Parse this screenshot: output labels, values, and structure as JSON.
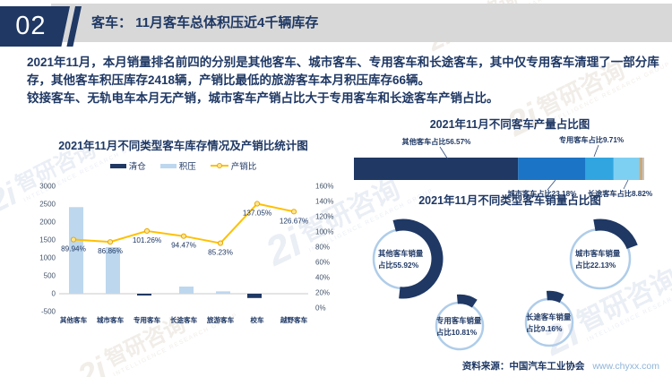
{
  "header": {
    "number": "02",
    "title": "客车： 11月客车总体积压近4千辆库存"
  },
  "intro": {
    "paragraph1": "2021年11月，本月销量排名前四的分别是其他客车、城市客车、专用客车和长途客车，其中仅专用客车清理了一部分库存，其他客车积压库存2418辆，产销比最低的旅游客车本月积压库存66辆。",
    "paragraph2": "铰接客车、无轨电车本月无产销，城市客车产销占比大于专用客车和长途客车产销占比。"
  },
  "footer": {
    "source_label": "资料来源：中国汽车工业协会",
    "url": "www.chyxx.com"
  },
  "watermark": {
    "glyph": "2i",
    "logo_text": "智研咨询",
    "sub_text": "INTELLIGENCE RESEARCH GROUP"
  },
  "colors": {
    "navy": "#1F3864",
    "light_blue": "#BDD7EE",
    "gold": "#FFC000",
    "header_gray": "#D8D8D8",
    "ring_blue": "#AFCDE9"
  },
  "chart_data": [
    {
      "id": "inventory_and_ratio",
      "type": "bar+line",
      "title": "2021年11月不同类型客车库存情况及产销比统计图",
      "categories": [
        "其他客车",
        "城市客车",
        "专用客车",
        "长途客车",
        "旅游客车",
        "校车",
        "越野客车"
      ],
      "series": [
        {
          "name": "清仓",
          "type": "bar",
          "axis": "left",
          "color": "#1F3864",
          "values": [
            0,
            0,
            -50,
            0,
            0,
            -120,
            0
          ]
        },
        {
          "name": "积压",
          "type": "bar",
          "axis": "left",
          "color": "#BDD7EE",
          "values": [
            2418,
            1300,
            0,
            200,
            66,
            0,
            0
          ]
        },
        {
          "name": "产销比",
          "type": "line",
          "axis": "right",
          "color": "#FFC000",
          "values": [
            89.94,
            86.86,
            101.26,
            94.47,
            85.23,
            137.05,
            126.67
          ]
        }
      ],
      "left_axis": {
        "min": -500,
        "max": 3000,
        "step": 500
      },
      "right_axis": {
        "min": 0,
        "max": 160,
        "step": 20,
        "suffix": "%"
      },
      "grid": false,
      "legend_position": "top"
    },
    {
      "id": "production_share",
      "type": "stacked-bar",
      "title": "2021年11月不同客车产量占比图",
      "segments": [
        {
          "label": "其他客车占比56.57%",
          "value": 56.57,
          "color": "#1F3864",
          "label_side": "top"
        },
        {
          "label": "城市客车占比23.18%",
          "value": 23.18,
          "color": "#1B74C5",
          "label_side": "bottom"
        },
        {
          "label": "专用客车占比9.71%",
          "value": 9.71,
          "color": "#31A5E0",
          "label_side": "top"
        },
        {
          "label": "长途客车占比8.82%",
          "value": 8.82,
          "color": "#7ED0F2",
          "label_side": "bottom"
        },
        {
          "label": "",
          "value": 1.12,
          "color": "#C9A97E",
          "label_side": "none"
        },
        {
          "label": "",
          "value": 0.6,
          "color": "#C4C4C4",
          "label_side": "none"
        }
      ]
    },
    {
      "id": "sales_share",
      "type": "donut-group",
      "title": "2021年11月不同类型客车销量占比图",
      "arc_color": "#1F3864",
      "ring_color": "#AFCDE9",
      "donuts": [
        {
          "label_line1": "其他客车销量",
          "label_line2": "占比55.92%",
          "value": 55.92,
          "size": "large"
        },
        {
          "label_line1": "城市客车销量",
          "label_line2": "占比22.13%",
          "value": 22.13,
          "size": "large"
        },
        {
          "label_line1": "专用客车销量",
          "label_line2": "占比10.81%",
          "value": 10.81,
          "size": "small"
        },
        {
          "label_line1": "长途客车销量",
          "label_line2": "占比9.16%",
          "value": 9.16,
          "size": "small"
        }
      ]
    }
  ]
}
